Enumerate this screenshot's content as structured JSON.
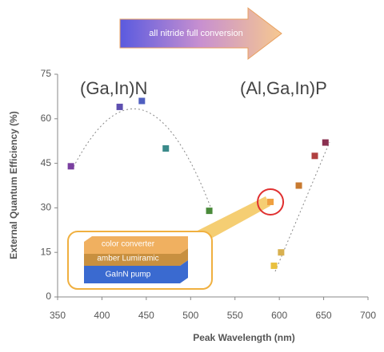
{
  "chart_data": {
    "type": "scatter",
    "x_label": "Peak Wavelength (nm)",
    "y_label": "External Quantum Efficiency (%)",
    "xlim": [
      350,
      700
    ],
    "xticks": [
      350,
      400,
      450,
      500,
      550,
      600,
      650,
      700
    ],
    "ylim": [
      0,
      75
    ],
    "yticks": [
      0,
      15,
      30,
      45,
      60,
      75
    ],
    "series": [
      {
        "name": "(Ga,In)N",
        "x": [
          365,
          420,
          445,
          472,
          521
        ],
        "values": [
          44,
          64,
          66,
          50,
          29
        ],
        "colors": [
          "#7a3fa0",
          "#5e4fb0",
          "#4f5fc0",
          "#3a8a8a",
          "#4a8a3a"
        ]
      },
      {
        "name": "(Al,Ga,In)P",
        "x": [
          594,
          602,
          622,
          640,
          652
        ],
        "values": [
          10.5,
          15,
          37.5,
          47.5,
          52
        ],
        "colors": [
          "#e8c040",
          "#d8b050",
          "#c87a30",
          "#b04040",
          "#8a3050"
        ]
      }
    ],
    "highlight": {
      "x": 590,
      "y": 32,
      "color": "#f0a040"
    },
    "arrow_text": "all nitride full conversion",
    "stack_layers": [
      "color converter",
      "amber Lumiramic",
      "GaInN pump"
    ]
  }
}
